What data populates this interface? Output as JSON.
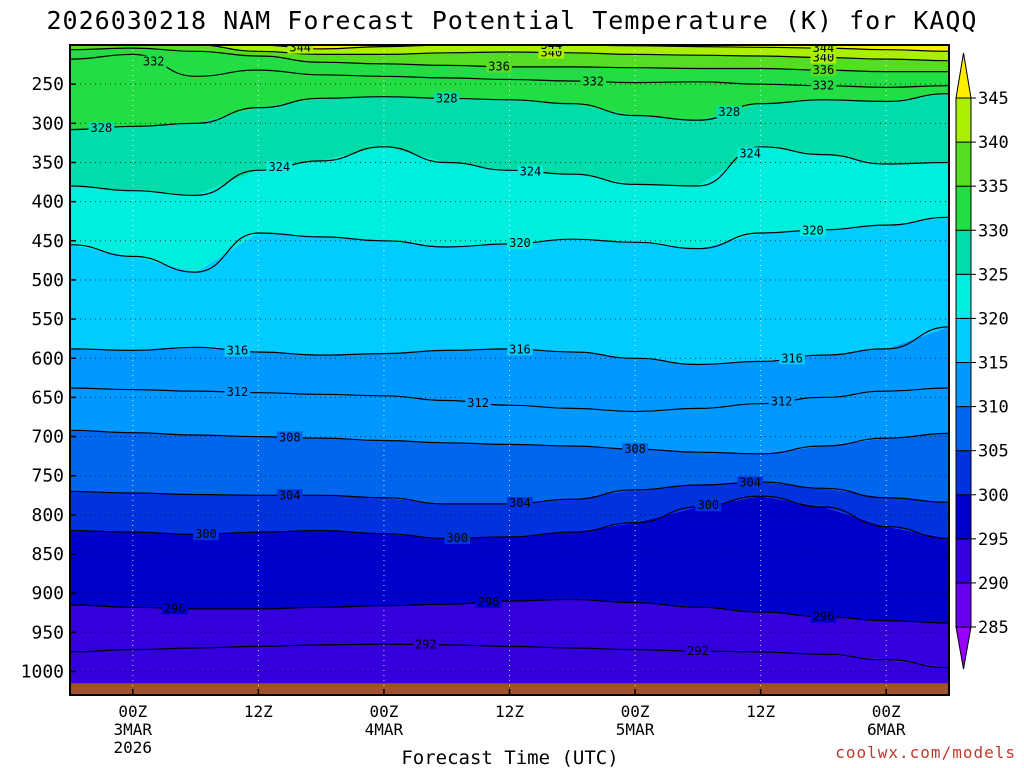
{
  "chart_data": {
    "type": "heatmap",
    "title": "2026030218 NAM Forecast Potential Temperature (K) for KAQQ",
    "xlabel": "Forecast Time (UTC)",
    "ylabel": "",
    "credit": "coolwx.com/models",
    "y_ticks": [
      "250",
      "300",
      "350",
      "400",
      "450",
      "500",
      "550",
      "600",
      "650",
      "700",
      "750",
      "800",
      "850",
      "900",
      "950",
      "1000"
    ],
    "y_range_hpa": [
      200,
      1030
    ],
    "x_ticks": [
      {
        "hour": 0,
        "line1": "00Z",
        "line2": "3MAR",
        "line3": "2026"
      },
      {
        "hour": 12,
        "line1": "12Z",
        "line2": "",
        "line3": ""
      },
      {
        "hour": 24,
        "line1": "00Z",
        "line2": "4MAR",
        "line3": ""
      },
      {
        "hour": 36,
        "line1": "12Z",
        "line2": "",
        "line3": ""
      },
      {
        "hour": 48,
        "line1": "00Z",
        "line2": "5MAR",
        "line3": ""
      },
      {
        "hour": 60,
        "line1": "12Z",
        "line2": "",
        "line3": ""
      },
      {
        "hour": 72,
        "line1": "00Z",
        "line2": "6MAR",
        "line3": ""
      }
    ],
    "x_range_hours": [
      -6,
      78
    ],
    "colorbar": {
      "levels": [
        285,
        290,
        295,
        300,
        305,
        310,
        315,
        320,
        325,
        330,
        335,
        340,
        345
      ],
      "labels": [
        "285",
        "290",
        "295",
        "300",
        "305",
        "310",
        "315",
        "320",
        "325",
        "330",
        "335",
        "340",
        "345"
      ],
      "colors": [
        "#9900ff",
        "#6600ee",
        "#3300dd",
        "#0000cc",
        "#0033dd",
        "#0066ee",
        "#0099ff",
        "#00ccff",
        "#00eedd",
        "#00ddaa",
        "#22dd44",
        "#55dd22",
        "#aaee00",
        "#ffee00"
      ]
    },
    "series_times_hours": [
      -6,
      0,
      6,
      12,
      18,
      24,
      30,
      36,
      42,
      48,
      54,
      60,
      66,
      72,
      78
    ],
    "isentropes": [
      {
        "theta": 292,
        "label": "292",
        "pressures": [
          975,
          972,
          970,
          968,
          966,
          965,
          966,
          968,
          970,
          972,
          974,
          975,
          978,
          985,
          995
        ]
      },
      {
        "theta": 296,
        "label": "296",
        "pressures": [
          915,
          918,
          920,
          920,
          918,
          916,
          914,
          910,
          908,
          912,
          918,
          924,
          930,
          935,
          938
        ]
      },
      {
        "theta": 300,
        "label": "300",
        "pressures": [
          820,
          822,
          825,
          822,
          820,
          824,
          830,
          828,
          822,
          810,
          790,
          776,
          790,
          815,
          830
        ]
      },
      {
        "theta": 304,
        "label": "304",
        "pressures": [
          770,
          772,
          774,
          775,
          775,
          778,
          786,
          786,
          780,
          768,
          762,
          758,
          766,
          778,
          784
        ]
      },
      {
        "theta": 308,
        "label": "308",
        "pressures": [
          692,
          695,
          698,
          700,
          702,
          705,
          708,
          710,
          712,
          716,
          720,
          722,
          712,
          702,
          696
        ]
      },
      {
        "theta": 312,
        "label": "312",
        "pressures": [
          638,
          640,
          642,
          644,
          646,
          648,
          654,
          660,
          664,
          668,
          664,
          658,
          650,
          642,
          638
        ]
      },
      {
        "theta": 316,
        "label": "316",
        "pressures": [
          588,
          590,
          586,
          592,
          596,
          594,
          590,
          588,
          592,
          600,
          608,
          604,
          596,
          588,
          560
        ]
      },
      {
        "theta": 320,
        "label": "320",
        "pressures": [
          455,
          470,
          490,
          440,
          445,
          450,
          458,
          454,
          448,
          452,
          460,
          440,
          436,
          430,
          420
        ]
      },
      {
        "theta": 324,
        "label": "324",
        "pressures": [
          380,
          386,
          392,
          360,
          348,
          330,
          350,
          360,
          365,
          378,
          380,
          330,
          340,
          352,
          350
        ]
      },
      {
        "theta": 328,
        "label": "328",
        "pressures": [
          308,
          304,
          300,
          280,
          268,
          266,
          268,
          270,
          275,
          290,
          296,
          275,
          270,
          272,
          262
        ]
      },
      {
        "theta": 332,
        "label": "332",
        "pressures": [
          218,
          212,
          240,
          232,
          238,
          240,
          242,
          244,
          246,
          248,
          247,
          250,
          252,
          254,
          252
        ]
      },
      {
        "theta": 336,
        "label": "336",
        "pressures": [
          206,
          204,
          208,
          214,
          222,
          224,
          226,
          228,
          228,
          229,
          230,
          230,
          232,
          234,
          234
        ]
      },
      {
        "theta": 340,
        "label": "340",
        "pressures": [
          200,
          200,
          200,
          208,
          212,
          212,
          210,
          209,
          210,
          212,
          213,
          214,
          216,
          218,
          220
        ]
      },
      {
        "theta": 344,
        "label": "344",
        "pressures": [
          200,
          200,
          200,
          200,
          205,
          202,
          200,
          200,
          200,
          201,
          202,
          203,
          204,
          206,
          208
        ]
      }
    ],
    "label_positions": [
      {
        "label": "292",
        "hour": 28,
        "theta": 292
      },
      {
        "label": "292",
        "hour": 54,
        "theta": 292
      },
      {
        "label": "296",
        "hour": 4,
        "theta": 296
      },
      {
        "label": "296",
        "hour": 34,
        "theta": 296
      },
      {
        "label": "296",
        "hour": 66,
        "theta": 296
      },
      {
        "label": "300",
        "hour": 7,
        "theta": 300
      },
      {
        "label": "300",
        "hour": 31,
        "theta": 300
      },
      {
        "label": "300",
        "hour": 55,
        "theta": 300
      },
      {
        "label": "304",
        "hour": 15,
        "theta": 304
      },
      {
        "label": "304",
        "hour": 37,
        "theta": 304
      },
      {
        "label": "304",
        "hour": 59,
        "theta": 304
      },
      {
        "label": "308",
        "hour": 15,
        "theta": 308
      },
      {
        "label": "308",
        "hour": 48,
        "theta": 308
      },
      {
        "label": "312",
        "hour": 10,
        "theta": 312
      },
      {
        "label": "312",
        "hour": 33,
        "theta": 312
      },
      {
        "label": "312",
        "hour": 62,
        "theta": 312
      },
      {
        "label": "316",
        "hour": 10,
        "theta": 316
      },
      {
        "label": "316",
        "hour": 37,
        "theta": 316
      },
      {
        "label": "316",
        "hour": 63,
        "theta": 316
      },
      {
        "label": "320",
        "hour": 37,
        "theta": 320
      },
      {
        "label": "320",
        "hour": 65,
        "theta": 320
      },
      {
        "label": "324",
        "hour": 14,
        "theta": 324
      },
      {
        "label": "324",
        "hour": 38,
        "theta": 324
      },
      {
        "label": "324",
        "hour": 59,
        "theta": 324
      },
      {
        "label": "328",
        "hour": -3,
        "theta": 328
      },
      {
        "label": "328",
        "hour": 30,
        "theta": 328
      },
      {
        "label": "328",
        "hour": 57,
        "theta": 328
      },
      {
        "label": "332",
        "hour": 2,
        "theta": 332
      },
      {
        "label": "332",
        "hour": 44,
        "theta": 332
      },
      {
        "label": "332",
        "hour": 66,
        "theta": 332
      },
      {
        "label": "336",
        "hour": 35,
        "theta": 336
      },
      {
        "label": "336",
        "hour": 66,
        "theta": 336
      },
      {
        "label": "340",
        "hour": 40,
        "theta": 340
      },
      {
        "label": "340",
        "hour": 66,
        "theta": 340
      },
      {
        "label": "344",
        "hour": 16,
        "theta": 344
      },
      {
        "label": "344",
        "hour": 40,
        "theta": 344
      },
      {
        "label": "344",
        "hour": 66,
        "theta": 344
      }
    ],
    "ground_layer": {
      "from_hpa": 1015,
      "to_hpa": 1030,
      "color": "#a0522d"
    }
  }
}
